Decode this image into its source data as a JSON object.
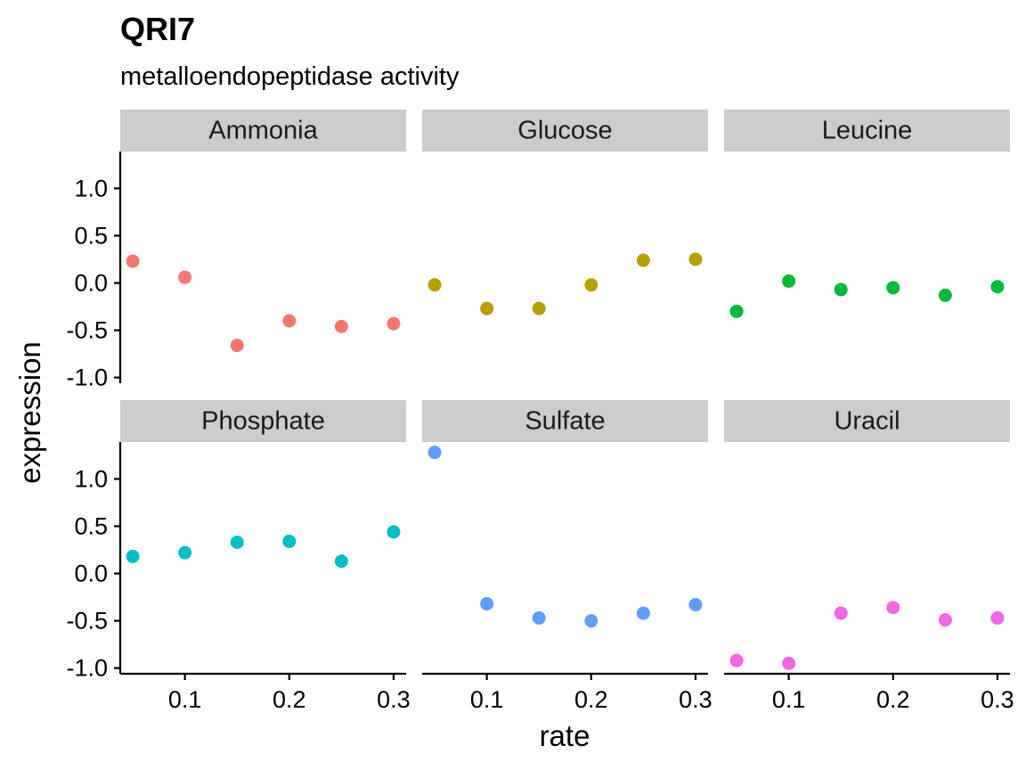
{
  "chart_data": {
    "type": "scatter",
    "title": "QRI7",
    "subtitle": "metalloendopeptidase activity",
    "xlabel": "rate",
    "ylabel": "expression",
    "xlim": [
      0.038,
      0.312
    ],
    "ylim": [
      -1.06,
      1.39
    ],
    "x_ticks": [
      0.1,
      0.2,
      0.3
    ],
    "x_tick_labels": [
      "0.1",
      "0.2",
      "0.3"
    ],
    "y_ticks": [
      -1.0,
      -0.5,
      0.0,
      0.5,
      1.0
    ],
    "y_tick_labels": [
      "-1.0",
      "-0.5",
      "0.0",
      "0.5",
      "1.0"
    ],
    "facet_layout": {
      "rows": 2,
      "cols": 3
    },
    "grid": false,
    "legend": "none",
    "facets": [
      {
        "name": "Ammonia",
        "color": "#F8766D",
        "x": [
          0.05,
          0.1,
          0.15,
          0.2,
          0.25,
          0.3
        ],
        "y": [
          0.23,
          0.06,
          -0.66,
          -0.4,
          -0.46,
          -0.43
        ]
      },
      {
        "name": "Glucose",
        "color": "#B79F00",
        "x": [
          0.05,
          0.1,
          0.15,
          0.2,
          0.25,
          0.3
        ],
        "y": [
          -0.02,
          -0.27,
          -0.27,
          -0.02,
          0.24,
          0.25
        ]
      },
      {
        "name": "Leucine",
        "color": "#00BA38",
        "x": [
          0.05,
          0.1,
          0.15,
          0.2,
          0.25,
          0.3
        ],
        "y": [
          -0.3,
          0.02,
          -0.07,
          -0.05,
          -0.13,
          -0.04
        ]
      },
      {
        "name": "Phosphate",
        "color": "#00BFC4",
        "x": [
          0.05,
          0.1,
          0.15,
          0.2,
          0.25,
          0.3
        ],
        "y": [
          0.18,
          0.22,
          0.33,
          0.34,
          0.13,
          0.44
        ]
      },
      {
        "name": "Sulfate",
        "color": "#619CFF",
        "x": [
          0.05,
          0.1,
          0.15,
          0.2,
          0.25,
          0.3
        ],
        "y": [
          1.28,
          -0.32,
          -0.47,
          -0.5,
          -0.42,
          -0.33
        ]
      },
      {
        "name": "Uracil",
        "color": "#F564E3",
        "x": [
          0.05,
          0.1,
          0.15,
          0.2,
          0.25,
          0.3
        ],
        "y": [
          -0.92,
          -0.95,
          -0.42,
          -0.36,
          -0.49,
          -0.47
        ]
      }
    ]
  }
}
